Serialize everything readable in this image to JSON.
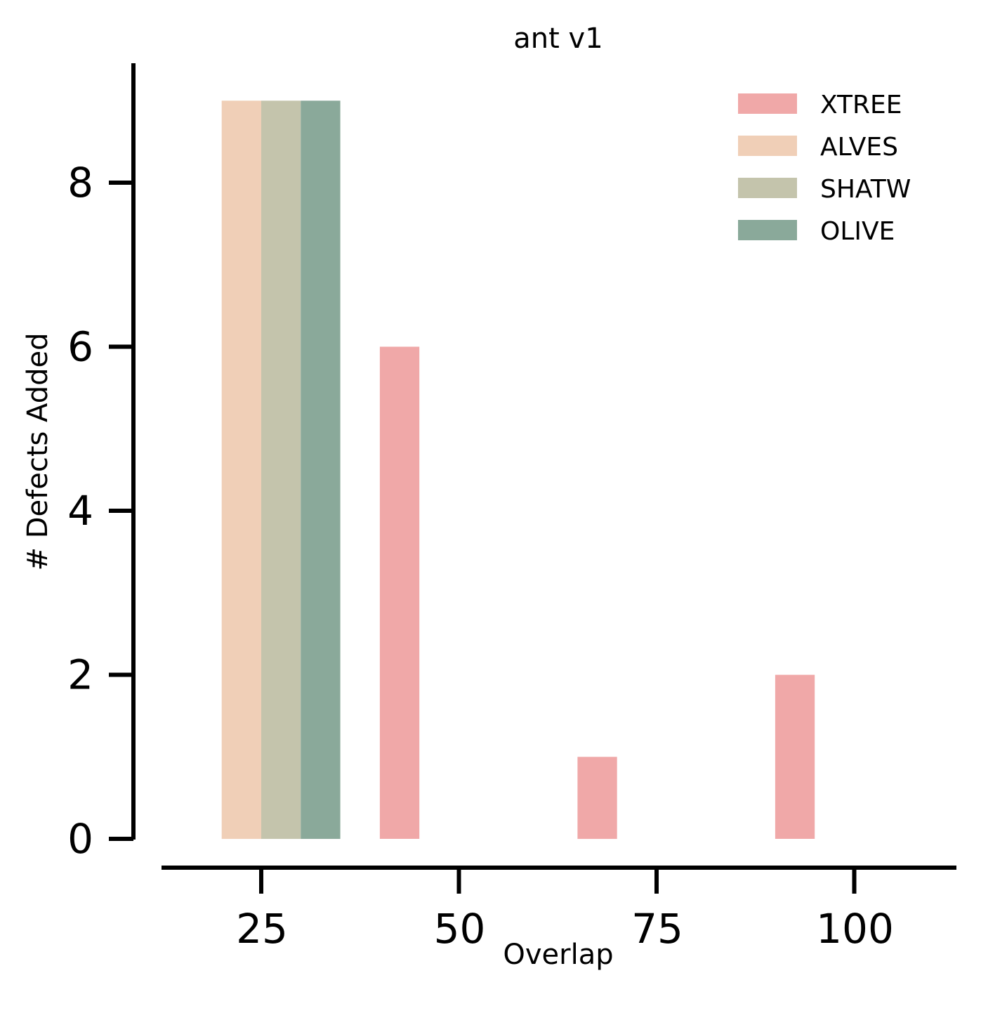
{
  "chart_data": {
    "type": "bar",
    "title": "ant v1",
    "xlabel": "Overlap",
    "ylabel": "# Defects Added",
    "xlim": [
      12.5,
      112.5
    ],
    "ylim": [
      0,
      9.5
    ],
    "xticks": [
      25,
      50,
      75,
      100
    ],
    "yticks": [
      0,
      2,
      4,
      6,
      8
    ],
    "bar_width": 5,
    "grid": false,
    "legend_position": "top-right",
    "series": [
      {
        "name": "XTREE",
        "color": "#f0a8a8",
        "x": [
          42.5,
          67.5,
          92.5
        ],
        "values": [
          6,
          1,
          2
        ]
      },
      {
        "name": "ALVES",
        "color": "#f0cfb7",
        "x": [
          22.5
        ],
        "values": [
          9
        ]
      },
      {
        "name": "SHATW",
        "color": "#c4c4ac",
        "x": [
          27.5
        ],
        "values": [
          9
        ]
      },
      {
        "name": "OLIVE",
        "color": "#8aa99a",
        "x": [
          32.5
        ],
        "values": [
          9
        ]
      }
    ]
  }
}
